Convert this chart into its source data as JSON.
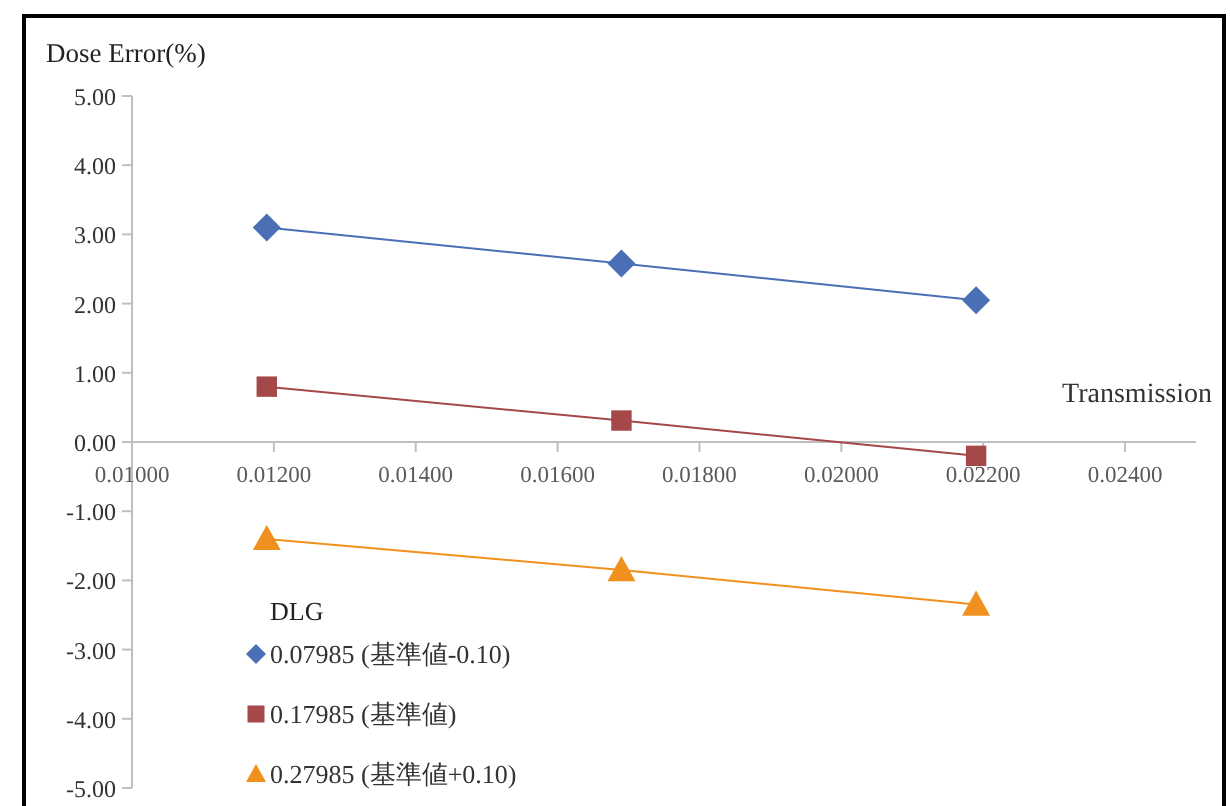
{
  "chart_data": {
    "type": "line",
    "ylabel": "Dose Error(%)",
    "xlabel": "Transmission",
    "legend_title": "DLG",
    "legend": "bottom left",
    "grid": false,
    "xlim": [
      0.01,
      0.025
    ],
    "ylim": [
      -5,
      5
    ],
    "xticks": [
      {
        "value": 0.01,
        "label": "0.01000"
      },
      {
        "value": 0.012,
        "label": "0.01200"
      },
      {
        "value": 0.014,
        "label": "0.01400"
      },
      {
        "value": 0.016,
        "label": "0.01600"
      },
      {
        "value": 0.018,
        "label": "0.01800"
      },
      {
        "value": 0.02,
        "label": "0.02000"
      },
      {
        "value": 0.022,
        "label": "0.02200"
      },
      {
        "value": 0.024,
        "label": "0.02400"
      }
    ],
    "yticks": [
      {
        "value": 5,
        "label": "5.00"
      },
      {
        "value": 4,
        "label": "4.00"
      },
      {
        "value": 3,
        "label": "3.00"
      },
      {
        "value": 2,
        "label": "2.00"
      },
      {
        "value": 1,
        "label": "1.00"
      },
      {
        "value": 0,
        "label": "0.00"
      },
      {
        "value": -1,
        "label": "-1.00"
      },
      {
        "value": -2,
        "label": "-2.00"
      },
      {
        "value": -3,
        "label": "-3.00"
      },
      {
        "value": -4,
        "label": "-4.00"
      },
      {
        "value": -5,
        "label": "-5.00"
      }
    ],
    "series": [
      {
        "name": "0.07985 (基準値-0.10)",
        "marker": "diamond",
        "color": "#4a6fb5",
        "x": [
          0.0119,
          0.0169,
          0.0219
        ],
        "values": [
          3.1,
          2.58,
          2.05
        ]
      },
      {
        "name": "0.17985 (基準値)",
        "marker": "square",
        "color": "#a5484a",
        "x": [
          0.0119,
          0.0169,
          0.0219
        ],
        "values": [
          0.8,
          0.31,
          -0.2
        ]
      },
      {
        "name": "0.27985 (基準値+0.10)",
        "marker": "triangle",
        "color": "#f0901e",
        "x": [
          0.0119,
          0.0169,
          0.0219
        ],
        "values": [
          -1.4,
          -1.85,
          -2.35
        ]
      }
    ]
  }
}
